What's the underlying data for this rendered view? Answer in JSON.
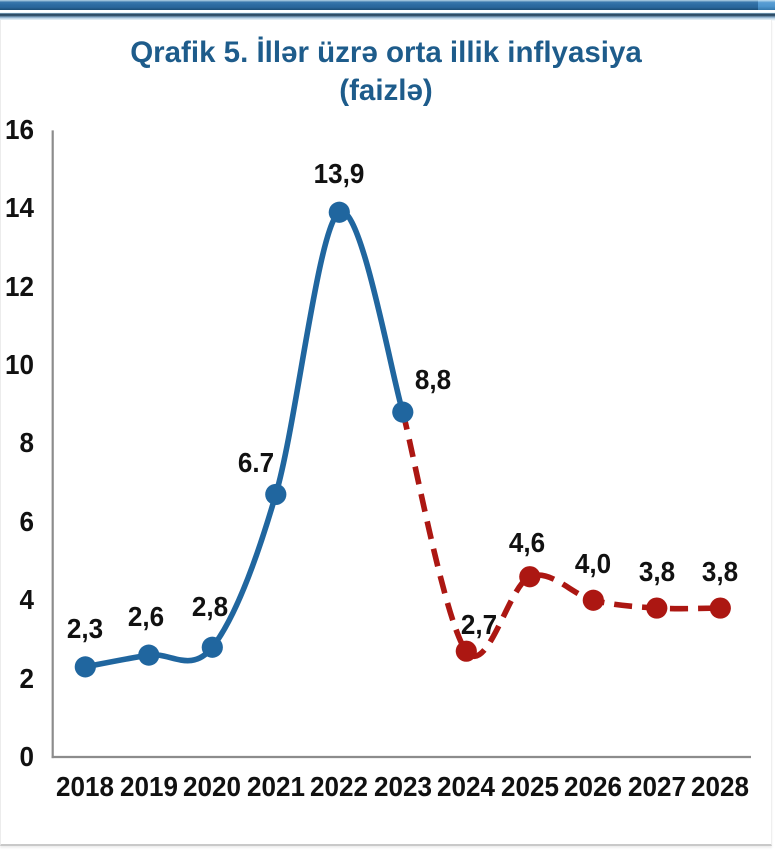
{
  "colors": {
    "title_blue": "#1e5c8b",
    "axis_gray": "#8c8c8c",
    "actual_blue": "#20669f",
    "forecast_red": "#ac1712",
    "header_blue": "#2e6da3",
    "header_blue_dark": "#1c4f78",
    "header_blue_light": "#4e96ce",
    "accent_navy": "#2c4b63",
    "label_black": "#111111"
  },
  "chart_data": {
    "type": "line",
    "title": "Qrafik 5. İllər üzrə orta illik inflyasiya",
    "subtitle": "(faizlə)",
    "categories": [
      "2018",
      "2019",
      "2020",
      "2021",
      "2022",
      "2023",
      "2024",
      "2025",
      "2026",
      "2027",
      "2028"
    ],
    "ylim": [
      0,
      16
    ],
    "yticks": [
      0,
      2,
      4,
      6,
      8,
      10,
      12,
      14,
      16
    ],
    "grid": false,
    "legend": "none",
    "series": [
      {
        "name": "actual",
        "line_style": "solid",
        "color": "#20669f",
        "points": [
          {
            "category": "2018",
            "value": 2.3,
            "label": "2,3",
            "label_dx": 0,
            "label_dy": -38
          },
          {
            "category": "2019",
            "value": 2.6,
            "label": "2,6",
            "label_dx": -3,
            "label_dy": -38
          },
          {
            "category": "2020",
            "value": 2.8,
            "label": "2,8",
            "label_dx": -2,
            "label_dy": -40
          },
          {
            "category": "2021",
            "value": 6.7,
            "label": "6.7",
            "label_dx": -20,
            "label_dy": -31
          },
          {
            "category": "2022",
            "value": 13.9,
            "label": "13,9",
            "label_dx": 0,
            "label_dy": -38
          },
          {
            "category": "2023",
            "value": 8.8,
            "label": "8,8",
            "label_dx": 30,
            "label_dy": -32
          }
        ]
      },
      {
        "name": "forecast",
        "line_style": "dashed",
        "color": "#ac1712",
        "points": [
          {
            "category": "2023",
            "value": 8.8,
            "label": "",
            "label_dx": 0,
            "label_dy": 0
          },
          {
            "category": "2024",
            "value": 2.7,
            "label": "2,7",
            "label_dx": 13,
            "label_dy": -26
          },
          {
            "category": "2025",
            "value": 4.6,
            "label": "4,6",
            "label_dx": -3,
            "label_dy": -34
          },
          {
            "category": "2026",
            "value": 4.0,
            "label": "4,0",
            "label_dx": 0,
            "label_dy": -36
          },
          {
            "category": "2027",
            "value": 3.8,
            "label": "3,8",
            "label_dx": 0,
            "label_dy": -36
          },
          {
            "category": "2028",
            "value": 3.8,
            "label": "3,8",
            "label_dx": 0,
            "label_dy": -36
          }
        ]
      }
    ]
  }
}
